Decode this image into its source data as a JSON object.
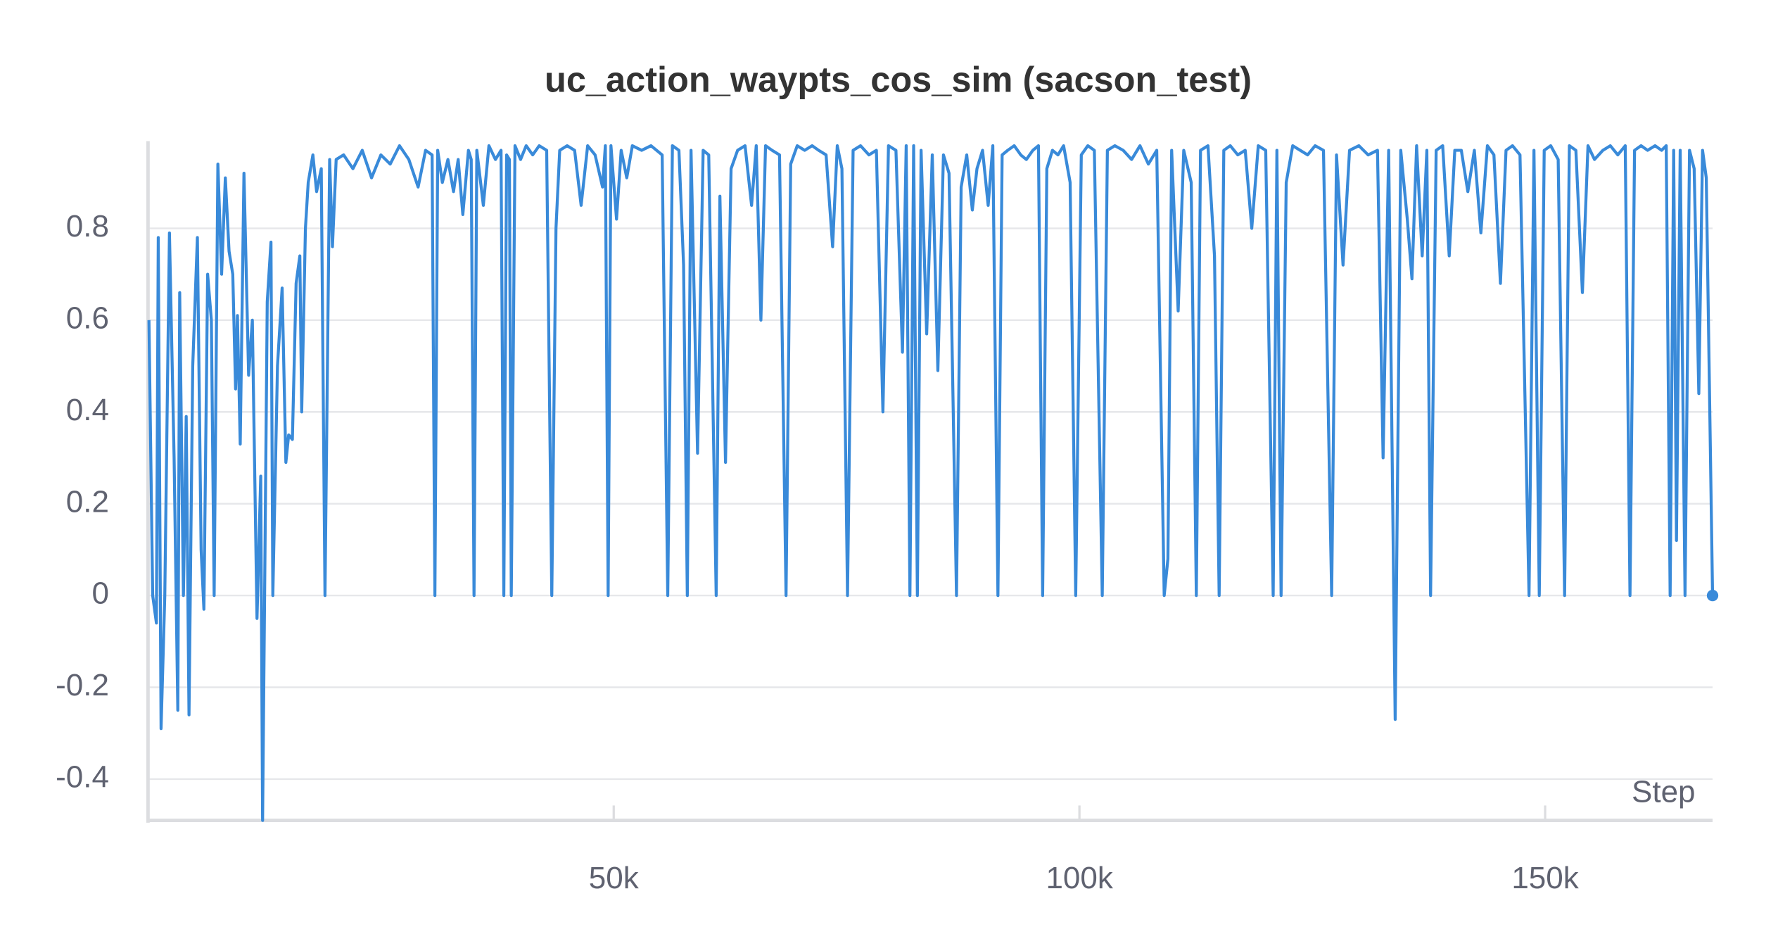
{
  "chart_data": {
    "type": "line",
    "title": "uc_action_waypts_cos_sim (sacson_test)",
    "x_label": "Step",
    "xlim": [
      0,
      167975
    ],
    "ylim": [
      -0.49,
      0.99
    ],
    "xticks": [
      {
        "value": 50000,
        "label": "50k"
      },
      {
        "value": 100000,
        "label": "100k"
      },
      {
        "value": 150000,
        "label": "150k"
      }
    ],
    "yticks": [
      -0.4,
      -0.2,
      0,
      0.2,
      0.4,
      0.6,
      0.8
    ],
    "grid": true,
    "x": [
      100,
      500,
      900,
      1100,
      1400,
      1800,
      2300,
      2800,
      3200,
      3400,
      3800,
      4100,
      4400,
      4800,
      5300,
      5700,
      6000,
      6400,
      6800,
      7100,
      7500,
      7900,
      8300,
      8700,
      9100,
      9400,
      9600,
      9900,
      10300,
      10800,
      11200,
      11700,
      12100,
      12300,
      12800,
      13200,
      13400,
      13900,
      14400,
      14800,
      15100,
      15500,
      15900,
      16300,
      16500,
      16900,
      17200,
      17700,
      18100,
      18600,
      19000,
      19500,
      19800,
      20200,
      21000,
      22000,
      23000,
      24000,
      25000,
      26000,
      27000,
      28000,
      29000,
      29800,
      30500,
      30800,
      31100,
      31600,
      32200,
      32800,
      33300,
      33800,
      34400,
      34700,
      35000,
      35300,
      36000,
      36600,
      37300,
      37900,
      38200,
      38500,
      38800,
      39000,
      39400,
      40000,
      40600,
      41300,
      42000,
      42800,
      43350,
      43800,
      44200,
      45000,
      45800,
      46500,
      47200,
      48000,
      48800,
      49100,
      49400,
      49700,
      50300,
      50800,
      51400,
      52000,
      53000,
      54000,
      55200,
      55800,
      56300,
      57000,
      57500,
      57900,
      58300,
      59000,
      59600,
      60200,
      61000,
      61400,
      62000,
      62600,
      63300,
      64100,
      64800,
      65300,
      65800,
      66300,
      67000,
      67800,
      68500,
      69000,
      69700,
      70500,
      71300,
      72000,
      72800,
      73500,
      74000,
      74500,
      75100,
      75700,
      76500,
      77400,
      78200,
      78900,
      79500,
      80300,
      81000,
      81400,
      81800,
      82200,
      82600,
      83000,
      83600,
      84200,
      84800,
      85400,
      86000,
      86800,
      87300,
      87900,
      88500,
      89000,
      89600,
      90200,
      90700,
      91250,
      91700,
      92300,
      93000,
      93700,
      94300,
      95000,
      95600,
      96050,
      96500,
      97100,
      97700,
      98300,
      99000,
      99600,
      100200,
      100900,
      101600,
      102450,
      103000,
      103800,
      104700,
      105600,
      106500,
      107400,
      108300,
      109100,
      109500,
      109900,
      110600,
      111200,
      112000,
      112550,
      113000,
      113800,
      114500,
      115000,
      115500,
      116200,
      117000,
      117800,
      118500,
      119200,
      120000,
      120800,
      121200,
      121650,
      122200,
      122900,
      123700,
      124500,
      125300,
      126200,
      127080,
      127600,
      128300,
      129000,
      130000,
      131000,
      132000,
      132600,
      133200,
      133900,
      134500,
      135200,
      135700,
      136200,
      136800,
      137300,
      137700,
      138300,
      139000,
      139700,
      140300,
      141000,
      141700,
      142400,
      143100,
      143800,
      144500,
      145200,
      145800,
      146500,
      147300,
      148270,
      148800,
      149370,
      149900,
      150600,
      151400,
      152090,
      152600,
      153300,
      154000,
      154600,
      155300,
      156200,
      157000,
      157800,
      158600,
      159110,
      159600,
      160300,
      161000,
      161800,
      162500,
      163000,
      163420,
      163800,
      164100,
      164500,
      165020,
      165500,
      166000,
      166500,
      166900,
      167300,
      167975
    ],
    "series": [
      {
        "name": "sacson_test",
        "color": "#398ad9",
        "values": [
          0.6,
          0,
          -0.06,
          0.78,
          -0.29,
          0,
          0.79,
          0.3,
          -0.25,
          0.66,
          0,
          0.39,
          -0.26,
          0.5,
          0.78,
          0.1,
          -0.03,
          0.7,
          0.6,
          0,
          0.94,
          0.7,
          0.91,
          0.75,
          0.7,
          0.45,
          0.61,
          0.33,
          0.92,
          0.48,
          0.6,
          -0.05,
          0.26,
          -0.49,
          0.64,
          0.77,
          0,
          0.5,
          0.67,
          0.29,
          0.35,
          0.34,
          0.68,
          0.74,
          0.4,
          0.8,
          0.9,
          0.96,
          0.88,
          0.93,
          0,
          0.95,
          0.76,
          0.95,
          0.96,
          0.93,
          0.97,
          0.91,
          0.96,
          0.94,
          0.98,
          0.95,
          0.89,
          0.97,
          0.96,
          0,
          0.97,
          0.9,
          0.95,
          0.88,
          0.95,
          0.83,
          0.97,
          0.95,
          0,
          0.97,
          0.85,
          0.98,
          0.95,
          0.97,
          0,
          0.96,
          0.95,
          0,
          0.98,
          0.95,
          0.98,
          0.96,
          0.98,
          0.97,
          0,
          0.8,
          0.97,
          0.98,
          0.97,
          0.85,
          0.98,
          0.96,
          0.89,
          0.98,
          0,
          0.98,
          0.82,
          0.97,
          0.91,
          0.98,
          0.97,
          0.98,
          0.96,
          0,
          0.98,
          0.97,
          0.72,
          0,
          0.97,
          0.31,
          0.97,
          0.96,
          0,
          0.87,
          0.29,
          0.93,
          0.97,
          0.98,
          0.85,
          0.98,
          0.6,
          0.98,
          0.97,
          0.96,
          0,
          0.94,
          0.98,
          0.97,
          0.98,
          0.97,
          0.96,
          0.76,
          0.98,
          0.93,
          0,
          0.97,
          0.98,
          0.96,
          0.97,
          0.4,
          0.98,
          0.97,
          0.53,
          0.98,
          0,
          0.98,
          0,
          0.97,
          0.57,
          0.96,
          0.49,
          0.96,
          0.92,
          0,
          0.89,
          0.96,
          0.84,
          0.93,
          0.97,
          0.85,
          0.98,
          0,
          0.96,
          0.97,
          0.98,
          0.96,
          0.95,
          0.97,
          0.98,
          0,
          0.93,
          0.97,
          0.96,
          0.98,
          0.9,
          0,
          0.96,
          0.98,
          0.97,
          0,
          0.97,
          0.98,
          0.97,
          0.95,
          0.98,
          0.94,
          0.97,
          0,
          0.08,
          0.97,
          0.62,
          0.97,
          0.9,
          0,
          0.97,
          0.98,
          0.74,
          0,
          0.97,
          0.98,
          0.96,
          0.97,
          0.8,
          0.98,
          0.97,
          0,
          0.97,
          0,
          0.9,
          0.98,
          0.97,
          0.96,
          0.98,
          0.97,
          0,
          0.96,
          0.72,
          0.97,
          0.98,
          0.96,
          0.97,
          0.3,
          0.97,
          -0.27,
          0.97,
          0.82,
          0.69,
          0.98,
          0.74,
          0.97,
          0,
          0.97,
          0.98,
          0.74,
          0.97,
          0.97,
          0.88,
          0.97,
          0.79,
          0.98,
          0.96,
          0.68,
          0.97,
          0.98,
          0.96,
          0,
          0.97,
          0,
          0.97,
          0.98,
          0.95,
          0,
          0.98,
          0.97,
          0.66,
          0.98,
          0.95,
          0.97,
          0.98,
          0.96,
          0.98,
          0,
          0.97,
          0.98,
          0.97,
          0.98,
          0.97,
          0.98,
          0,
          0.97,
          0.12,
          0.97,
          0,
          0.97,
          0.93,
          0.44,
          0.97,
          0.91,
          0
        ]
      }
    ]
  }
}
